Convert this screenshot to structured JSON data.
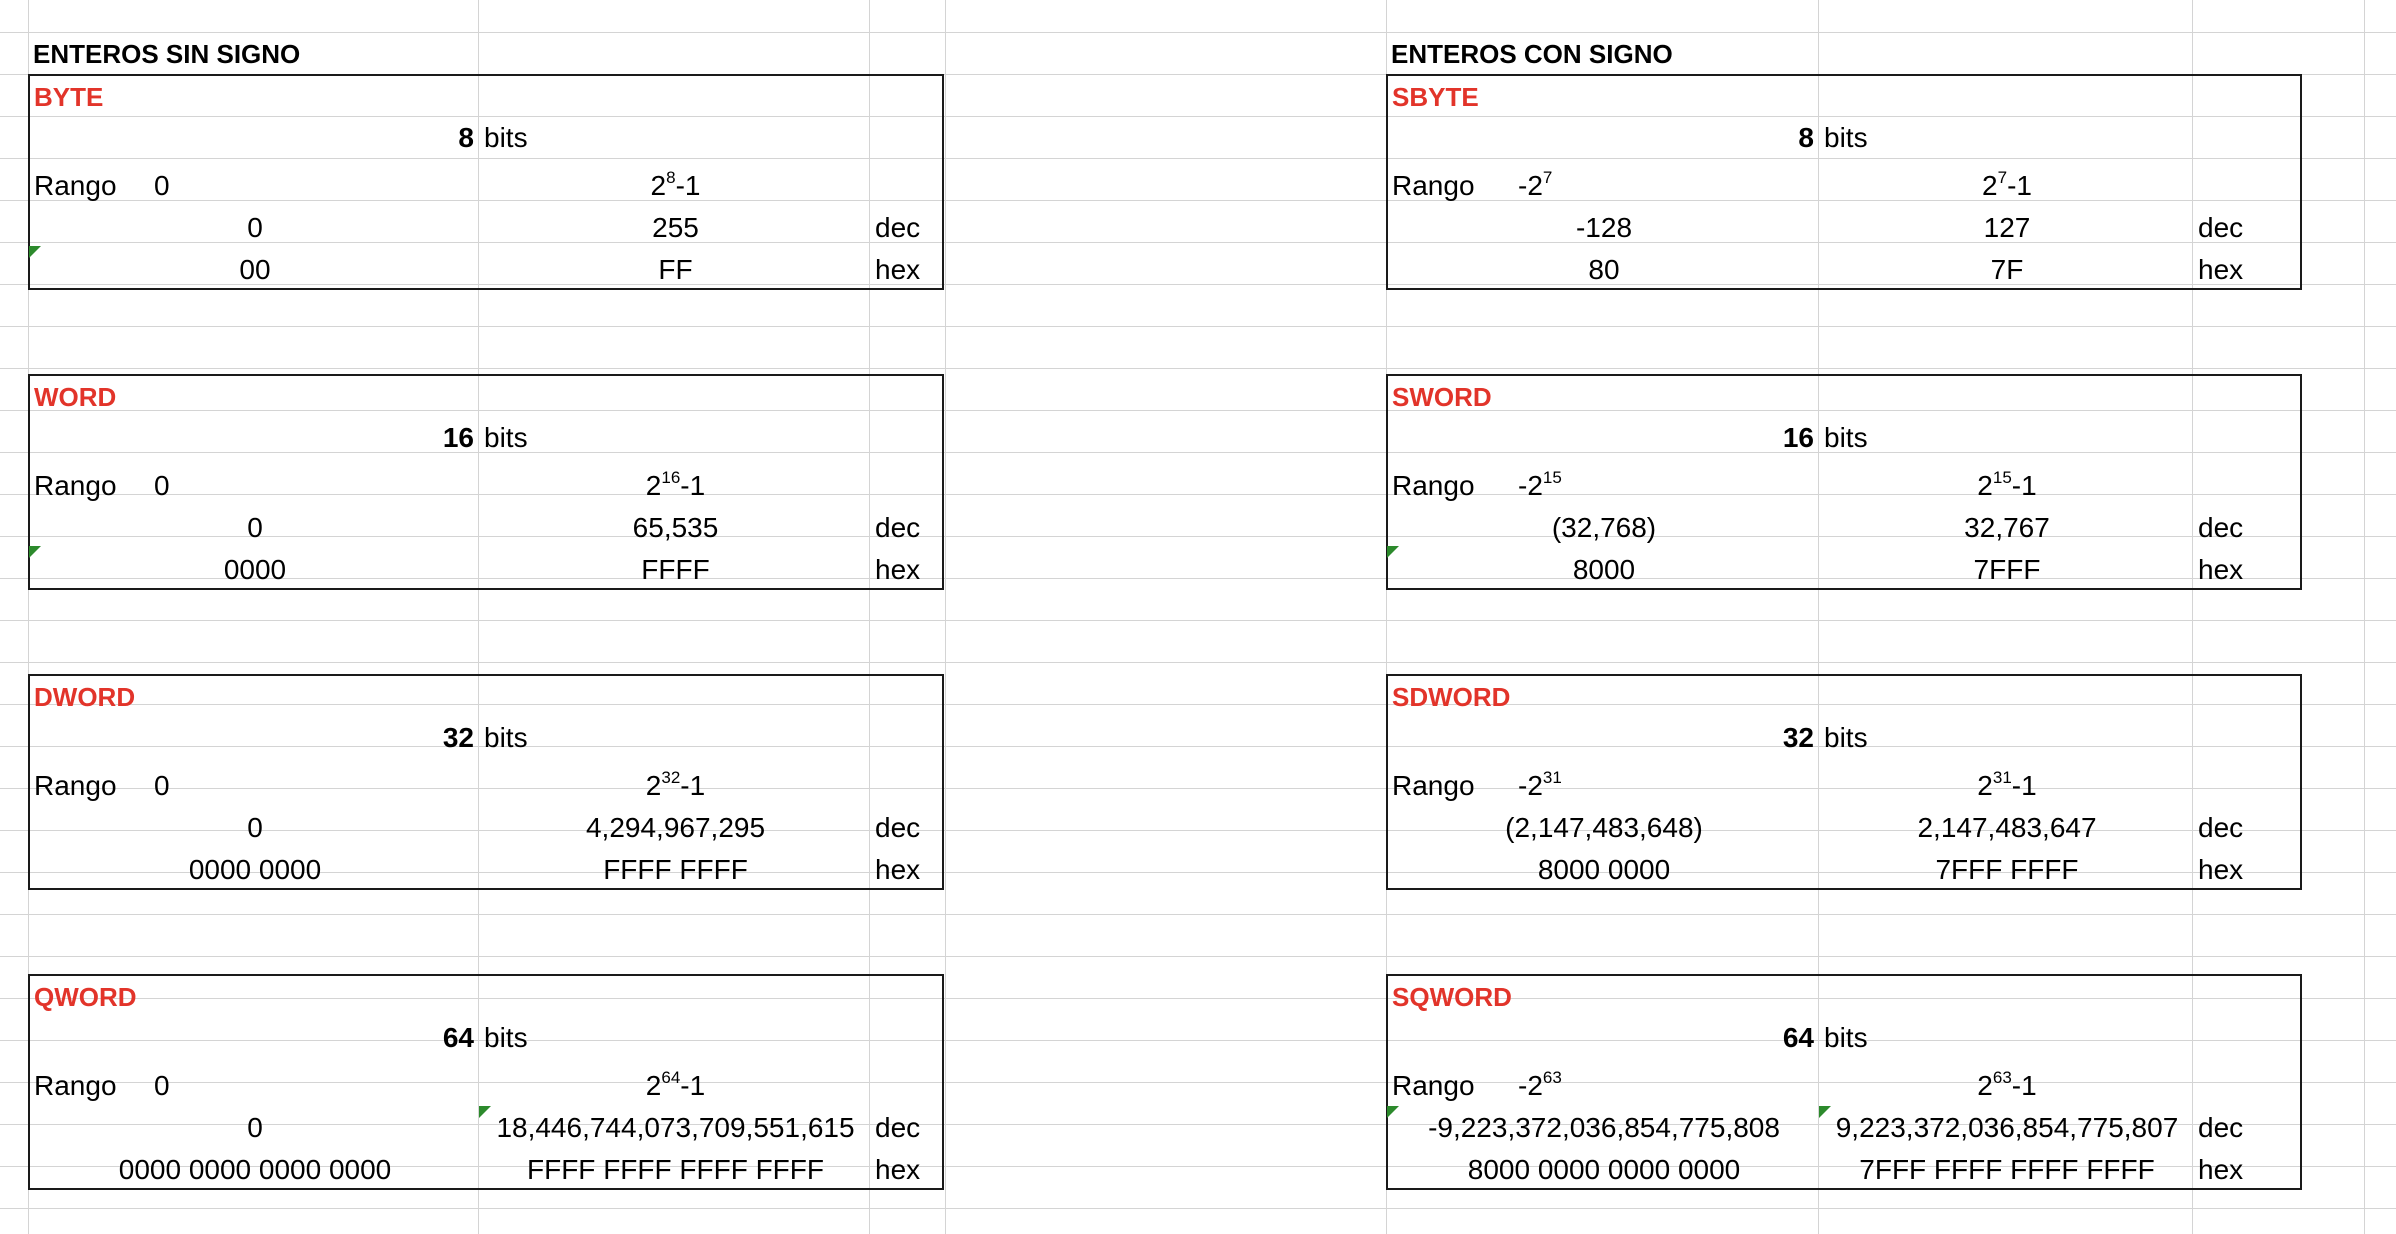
{
  "colors": {
    "type_name": "#e2342a",
    "border": "#1a1a1a",
    "gridline": "#d4d4d4",
    "error_flag": "#2c8a2c"
  },
  "sections": {
    "unsigned_title": "ENTEROS SIN SIGNO",
    "signed_title": "ENTEROS CON SIGNO"
  },
  "labels": {
    "rango": "Rango",
    "bits": "bits",
    "dec": "dec",
    "hex": "hex",
    "minus_one": "-1",
    "base_min": "0",
    "neg_base": "-2",
    "base": "2"
  },
  "unsigned": [
    {
      "name": "BYTE",
      "bits": "8",
      "exp": "8",
      "min_dec": "0",
      "max_dec": "255",
      "min_hex": "00",
      "max_hex": "FF"
    },
    {
      "name": "WORD",
      "bits": "16",
      "exp": "16",
      "min_dec": "0",
      "max_dec": "65,535",
      "min_hex": "0000",
      "max_hex": "FFFF"
    },
    {
      "name": "DWORD",
      "bits": "32",
      "exp": "32",
      "min_dec": "0",
      "max_dec": "4,294,967,295",
      "min_hex": "0000 0000",
      "max_hex": "FFFF FFFF"
    },
    {
      "name": "QWORD",
      "bits": "64",
      "exp": "64",
      "min_dec": "0",
      "max_dec": "18,446,744,073,709,551,615",
      "min_hex": "0000 0000 0000 0000",
      "max_hex": "FFFF FFFF FFFF FFFF"
    }
  ],
  "signed": [
    {
      "name": "SBYTE",
      "bits": "8",
      "exp": "7",
      "min_dec": "-128",
      "max_dec": "127",
      "min_hex": "80",
      "max_hex": "7F"
    },
    {
      "name": "SWORD",
      "bits": "16",
      "exp": "15",
      "min_dec": "(32,768)",
      "max_dec": "32,767",
      "min_hex": "8000",
      "max_hex": "7FFF"
    },
    {
      "name": "SDWORD",
      "bits": "32",
      "exp": "31",
      "min_dec": "(2,147,483,648)",
      "max_dec": "2,147,483,647",
      "min_hex": "8000 0000",
      "max_hex": "7FFF FFFF"
    },
    {
      "name": "SQWORD",
      "bits": "64",
      "exp": "63",
      "min_dec": "-9,223,372,036,854,775,808",
      "max_dec": "9,223,372,036,854,775,807",
      "min_hex": "8000 0000 0000 0000",
      "max_hex": "7FFF FFFF FFFF FFFF"
    }
  ]
}
